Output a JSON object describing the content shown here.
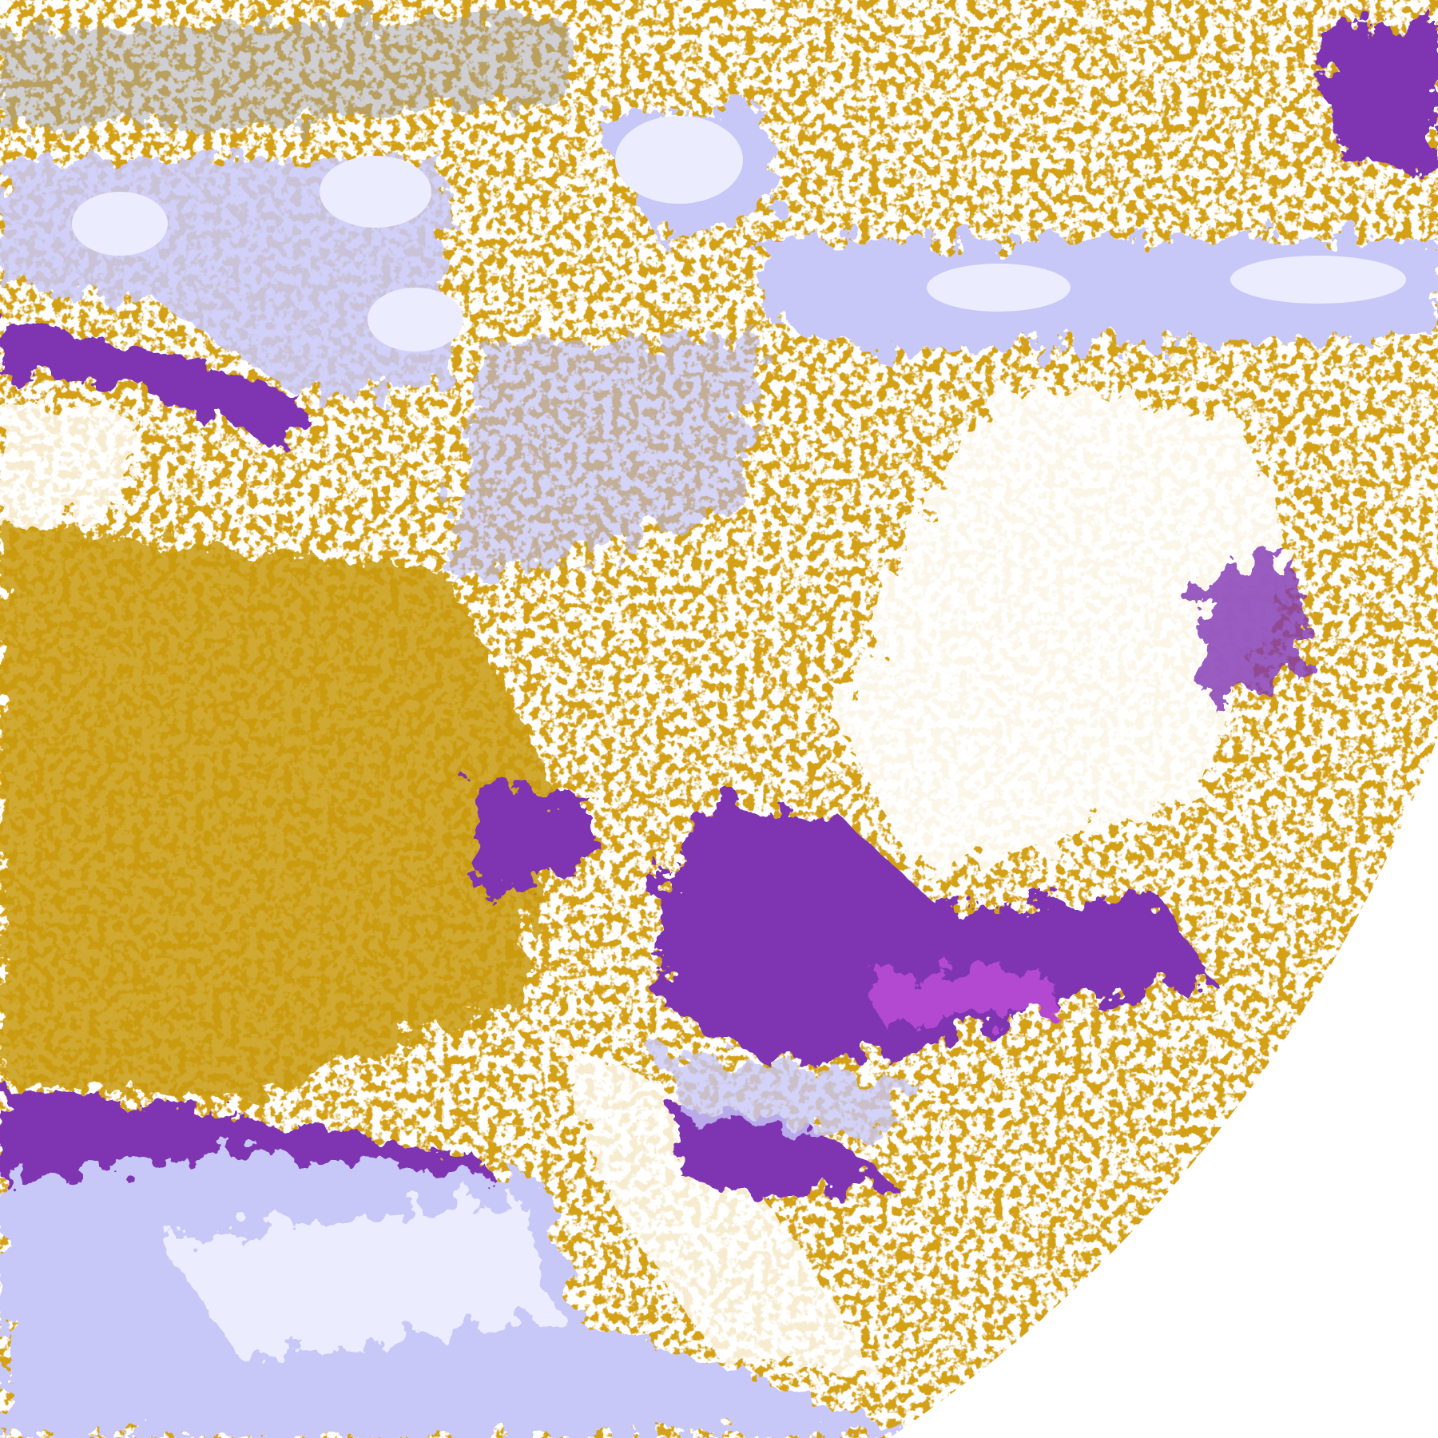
{
  "image": {
    "kind": "satellite cloud-type composite",
    "colors": {
      "background": "#ffffff",
      "gold": "#d4a017",
      "purple": "#7f35b2",
      "magenta": "#c050d8",
      "lavender": "#c8c8f8",
      "pale": "#ececff",
      "gray": "#a0a0a8",
      "periwinkle": "#9a9af0"
    }
  }
}
